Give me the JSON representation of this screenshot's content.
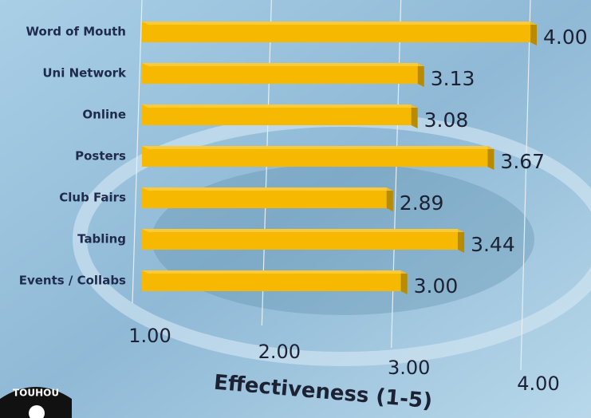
{
  "chart_data": {
    "type": "bar",
    "orientation": "horizontal",
    "x_label": "Effectiveness (1-5)",
    "categories": [
      "Word of Mouth",
      "Uni Network",
      "Online",
      "Posters",
      "Club Fairs",
      "Tabling",
      "Events / Collabs"
    ],
    "values": [
      4.0,
      3.13,
      3.08,
      3.67,
      2.89,
      3.44,
      3.0
    ],
    "value_labels": [
      "4.00",
      "3.13",
      "3.08",
      "3.67",
      "2.89",
      "3.44",
      "3.00"
    ],
    "color": "#f6b800",
    "xlim": [
      1,
      4
    ],
    "xticks": [
      {
        "value": 1,
        "label": "1.00"
      },
      {
        "value": 2,
        "label": "2.00"
      },
      {
        "value": 3,
        "label": "3.00"
      },
      {
        "value": 4,
        "label": "4.00"
      }
    ],
    "grid": true
  },
  "logo": {
    "text": "TOUHOU"
  }
}
